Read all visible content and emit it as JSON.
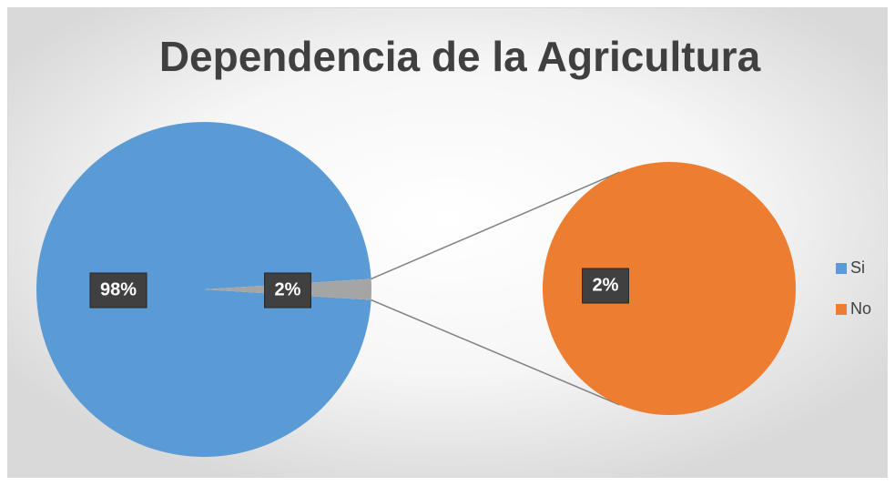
{
  "chart_data": {
    "type": "pie",
    "title": "Dependencia de la Agricultura",
    "categories": [
      "Si",
      "No"
    ],
    "values": [
      98,
      2
    ],
    "value_labels": [
      "98%",
      "2%"
    ],
    "colors": [
      "#5b9bd5",
      "#ed7d31"
    ],
    "other_color": "#a5a5a5",
    "legend": "right"
  }
}
